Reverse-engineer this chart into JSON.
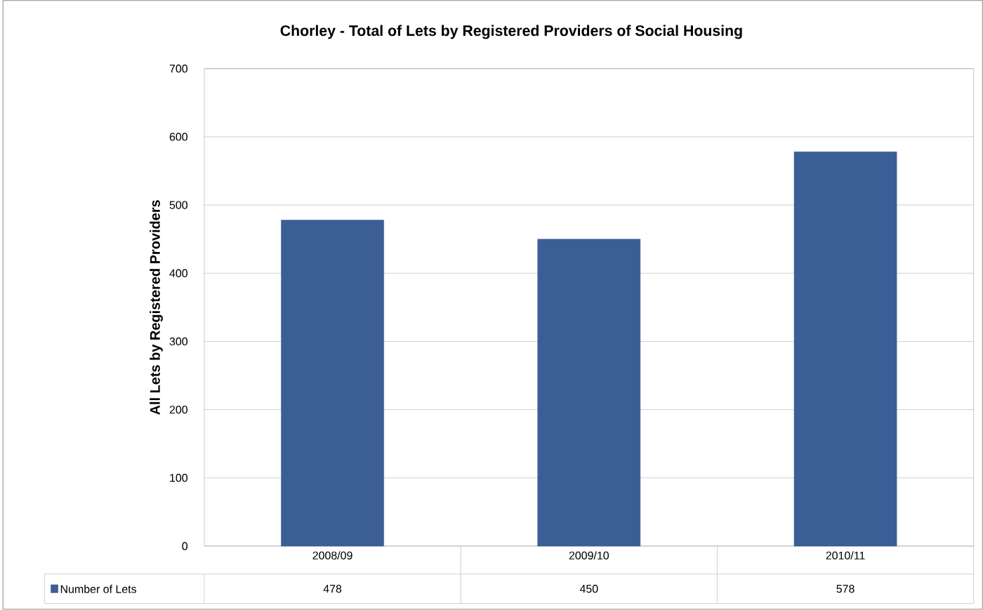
{
  "chart_data": {
    "type": "bar",
    "title": "Chorley - Total of Lets by Registered Providers of Social Housing",
    "ylabel": "All Lets by Registered Providers",
    "categories": [
      "2008/09",
      "2009/10",
      "2010/11"
    ],
    "series": [
      {
        "name": "Number of Lets",
        "color": "#3b5e96",
        "values": [
          478,
          450,
          578
        ]
      }
    ],
    "ylim": [
      0,
      700
    ],
    "yticks": [
      0,
      100,
      200,
      300,
      400,
      500,
      600,
      700
    ],
    "grid": "y",
    "data_labels": true
  }
}
